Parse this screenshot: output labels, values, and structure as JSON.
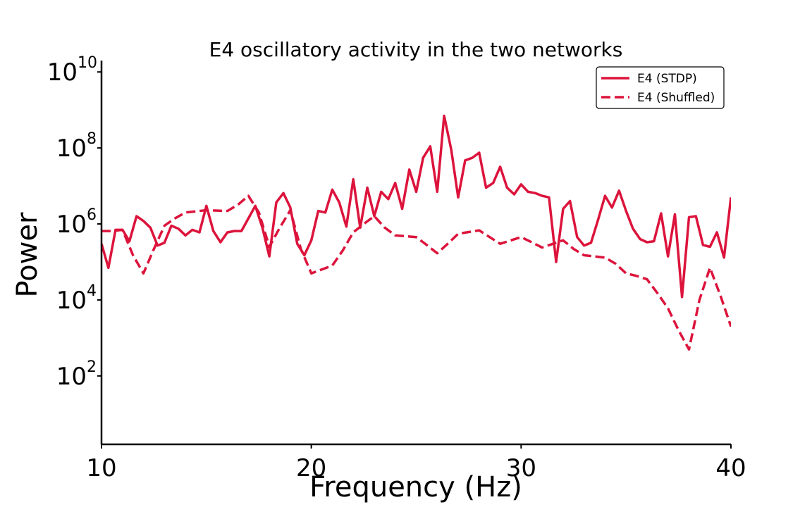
{
  "chart_data": {
    "type": "line",
    "title": "E4 oscillatory activity in the two networks",
    "xlabel": "Frequency (Hz)",
    "ylabel": "Power",
    "xlim": [
      10,
      40
    ],
    "ylim_log10": [
      0.2,
      10.3
    ],
    "yscale": "log",
    "grid": false,
    "legend_position": "top-right",
    "x_ticks": [
      {
        "value": 10,
        "label": "10"
      },
      {
        "value": 20,
        "label": "20"
      },
      {
        "value": 30,
        "label": "30"
      },
      {
        "value": 40,
        "label": "40"
      }
    ],
    "y_ticks": [
      {
        "exp": 2,
        "base": "10",
        "sup": "2"
      },
      {
        "exp": 4,
        "base": "10",
        "sup": "4"
      },
      {
        "exp": 6,
        "base": "10",
        "sup": "6"
      },
      {
        "exp": 8,
        "base": "10",
        "sup": "8"
      },
      {
        "exp": 10,
        "base": "10",
        "sup": "10"
      }
    ],
    "series": [
      {
        "name": "E4 (STDP)",
        "color": "#dc143c",
        "style": "solid",
        "points": [
          [
            10.0,
            300000.0
          ],
          [
            10.33,
            70000.0
          ],
          [
            10.67,
            700000.0
          ],
          [
            11.0,
            700000.0
          ],
          [
            11.33,
            350000.0
          ],
          [
            11.67,
            1600000.0
          ],
          [
            12.0,
            1200000.0
          ],
          [
            12.33,
            800000.0
          ],
          [
            12.67,
            270000.0
          ],
          [
            13.0,
            320000.0
          ],
          [
            13.33,
            900000.0
          ],
          [
            13.67,
            750000.0
          ],
          [
            14.0,
            500000.0
          ],
          [
            14.33,
            700000.0
          ],
          [
            14.67,
            600000.0
          ],
          [
            15.0,
            3000000.0
          ],
          [
            15.33,
            650000.0
          ],
          [
            15.67,
            330000.0
          ],
          [
            16.0,
            600000.0
          ],
          [
            16.33,
            650000.0
          ],
          [
            16.67,
            650000.0
          ],
          [
            17.0,
            1400000.0
          ],
          [
            17.33,
            3000000.0
          ],
          [
            17.67,
            800000.0
          ],
          [
            18.0,
            140000.0
          ],
          [
            18.33,
            3700000.0
          ],
          [
            18.67,
            6500000.0
          ],
          [
            19.0,
            2700000.0
          ],
          [
            19.33,
            300000.0
          ],
          [
            19.67,
            150000.0
          ],
          [
            20.0,
            370000.0
          ],
          [
            20.33,
            2200000.0
          ],
          [
            20.67,
            2000000.0
          ],
          [
            21.0,
            8000000.0
          ],
          [
            21.33,
            3700000.0
          ],
          [
            21.67,
            850000.0
          ],
          [
            22.0,
            15000000.0
          ],
          [
            22.33,
            800000.0
          ],
          [
            22.67,
            9000000.0
          ],
          [
            23.0,
            1600000.0
          ],
          [
            23.33,
            7000000.0
          ],
          [
            23.67,
            4500000.0
          ],
          [
            24.0,
            12000000.0
          ],
          [
            24.33,
            2500000.0
          ],
          [
            24.67,
            27000000.0
          ],
          [
            25.0,
            7000000.0
          ],
          [
            25.33,
            55000000.0
          ],
          [
            25.67,
            110000000.0
          ],
          [
            26.0,
            7000000.0
          ],
          [
            26.33,
            700000000.0
          ],
          [
            26.67,
            90000000.0
          ],
          [
            27.0,
            5000000.0
          ],
          [
            27.33,
            47000000.0
          ],
          [
            27.67,
            55000000.0
          ],
          [
            28.0,
            75000000.0
          ],
          [
            28.33,
            9000000.0
          ],
          [
            28.67,
            12000000.0
          ],
          [
            29.0,
            32000000.0
          ],
          [
            29.33,
            9000000.0
          ],
          [
            29.67,
            6000000.0
          ],
          [
            30.0,
            11000000.0
          ],
          [
            30.33,
            7000000.0
          ],
          [
            30.67,
            6500000.0
          ],
          [
            31.0,
            5500000.0
          ],
          [
            31.33,
            5000000.0
          ],
          [
            31.67,
            100000.0
          ],
          [
            32.0,
            2500000.0
          ],
          [
            32.33,
            4000000.0
          ],
          [
            32.67,
            450000.0
          ],
          [
            33.0,
            270000.0
          ],
          [
            33.33,
            320000.0
          ],
          [
            33.67,
            1300000.0
          ],
          [
            34.0,
            5500000.0
          ],
          [
            34.33,
            2700000.0
          ],
          [
            34.67,
            7500000.0
          ],
          [
            35.0,
            2200000.0
          ],
          [
            35.33,
            750000.0
          ],
          [
            35.67,
            400000.0
          ],
          [
            36.0,
            330000.0
          ],
          [
            36.33,
            350000.0
          ],
          [
            36.67,
            1900000.0
          ],
          [
            37.0,
            140000.0
          ],
          [
            37.33,
            1800000.0
          ],
          [
            37.67,
            12000.0
          ],
          [
            38.0,
            1500000.0
          ],
          [
            38.33,
            1600000.0
          ],
          [
            38.67,
            280000.0
          ],
          [
            39.0,
            250000.0
          ],
          [
            39.33,
            600000.0
          ],
          [
            39.67,
            130000.0
          ],
          [
            40.0,
            5000000.0
          ]
        ]
      },
      {
        "name": "E4 (Shuffled)",
        "color": "#dc143c",
        "style": "dashed",
        "points": [
          [
            10.0,
            650000.0
          ],
          [
            10.5,
            650000.0
          ],
          [
            11.0,
            700000.0
          ],
          [
            11.5,
            150000.0
          ],
          [
            12.0,
            50000.0
          ],
          [
            12.5,
            220000.0
          ],
          [
            13.0,
            900000.0
          ],
          [
            13.5,
            1400000.0
          ],
          [
            14.0,
            2000000.0
          ],
          [
            15.0,
            2300000.0
          ],
          [
            16.0,
            2200000.0
          ],
          [
            16.5,
            3200000.0
          ],
          [
            17.0,
            5500000.0
          ],
          [
            17.5,
            2000000.0
          ],
          [
            18.0,
            250000.0
          ],
          [
            18.5,
            800000.0
          ],
          [
            19.0,
            2300000.0
          ],
          [
            19.5,
            220000.0
          ],
          [
            20.0,
            50000.0
          ],
          [
            21.0,
            80000.0
          ],
          [
            21.5,
            200000.0
          ],
          [
            22.0,
            600000.0
          ],
          [
            22.5,
            1000000.0
          ],
          [
            23.0,
            1600000.0
          ],
          [
            23.5,
            800000.0
          ],
          [
            24.0,
            500000.0
          ],
          [
            25.0,
            450000.0
          ],
          [
            25.5,
            280000.0
          ],
          [
            26.0,
            170000.0
          ],
          [
            26.5,
            300000.0
          ],
          [
            27.0,
            550000.0
          ],
          [
            28.0,
            680000.0
          ],
          [
            28.5,
            450000.0
          ],
          [
            29.0,
            300000.0
          ],
          [
            30.0,
            450000.0
          ],
          [
            30.5,
            330000.0
          ],
          [
            31.0,
            240000.0
          ],
          [
            32.0,
            370000.0
          ],
          [
            32.5,
            220000.0
          ],
          [
            33.0,
            150000.0
          ],
          [
            34.0,
            130000.0
          ],
          [
            34.5,
            90000.0
          ],
          [
            35.0,
            50000.0
          ],
          [
            35.5,
            43000.0
          ],
          [
            36.0,
            35000.0
          ],
          [
            36.5,
            15000.0
          ],
          [
            37.0,
            6000.0
          ],
          [
            37.5,
            1600.0
          ],
          [
            38.0,
            500.0
          ],
          [
            38.5,
            10000.0
          ],
          [
            39.0,
            70000.0
          ],
          [
            39.5,
            13000.0
          ],
          [
            40.0,
            2000.0
          ]
        ]
      }
    ]
  }
}
